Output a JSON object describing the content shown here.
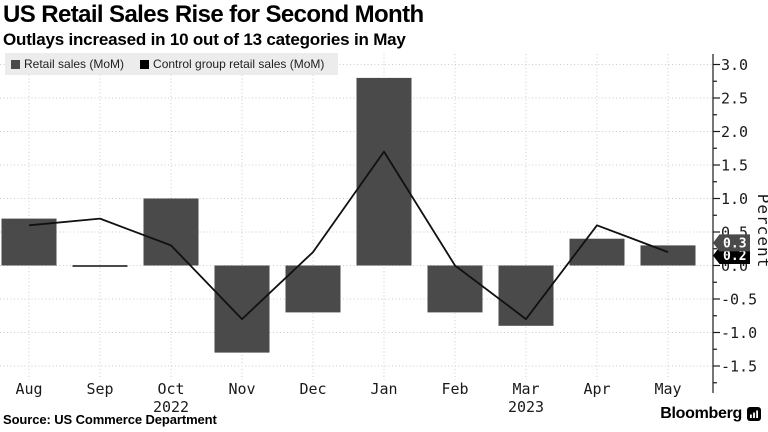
{
  "header": {
    "title": "US Retail Sales Rise for Second Month",
    "subtitle": "Outlays increased in 10 out of 13 categories in May"
  },
  "legend": {
    "items": [
      {
        "label": "Retail sales (MoM)",
        "color": "#4a4a4a"
      },
      {
        "label": "Control group retail sales (MoM)",
        "color": "#000000"
      }
    ]
  },
  "chart_data": {
    "type": "bar",
    "categories": [
      "Aug",
      "Sep",
      "Oct",
      "Nov",
      "Dec",
      "Jan",
      "Feb",
      "Mar",
      "Apr",
      "May"
    ],
    "year_labels": [
      {
        "text": "2022",
        "month": "Oct"
      },
      {
        "text": "2023",
        "month": "Mar"
      }
    ],
    "series": [
      {
        "name": "Retail sales (MoM)",
        "type": "bar",
        "color": "#4a4a4a",
        "values": [
          0.7,
          0.0,
          1.0,
          -1.3,
          -0.7,
          2.8,
          -0.7,
          -0.9,
          0.4,
          0.3
        ]
      },
      {
        "name": "Control group retail sales (MoM)",
        "type": "line",
        "color": "#111111",
        "values": [
          0.6,
          0.7,
          0.3,
          -0.8,
          0.2,
          1.7,
          0.0,
          -0.8,
          0.6,
          0.2
        ]
      }
    ],
    "xlabel": "",
    "ylabel": "Percent",
    "ylim": [
      -1.5,
      3.0
    ],
    "y_ticks": [
      "3.0",
      "2.5",
      "2.0",
      "1.5",
      "1.0",
      "0.5",
      "0.0",
      "-0.5",
      "-1.0",
      "-1.5"
    ],
    "grid": true,
    "legend_position": "top-left",
    "end_value_labels": [
      {
        "text": "0.3",
        "value": 0.3,
        "color": "#4a4a4a"
      },
      {
        "text": "0.2",
        "value": 0.2,
        "color": "#000000"
      }
    ]
  },
  "footer": {
    "source": "Source: US Commerce Department",
    "brand": "Bloomberg"
  }
}
